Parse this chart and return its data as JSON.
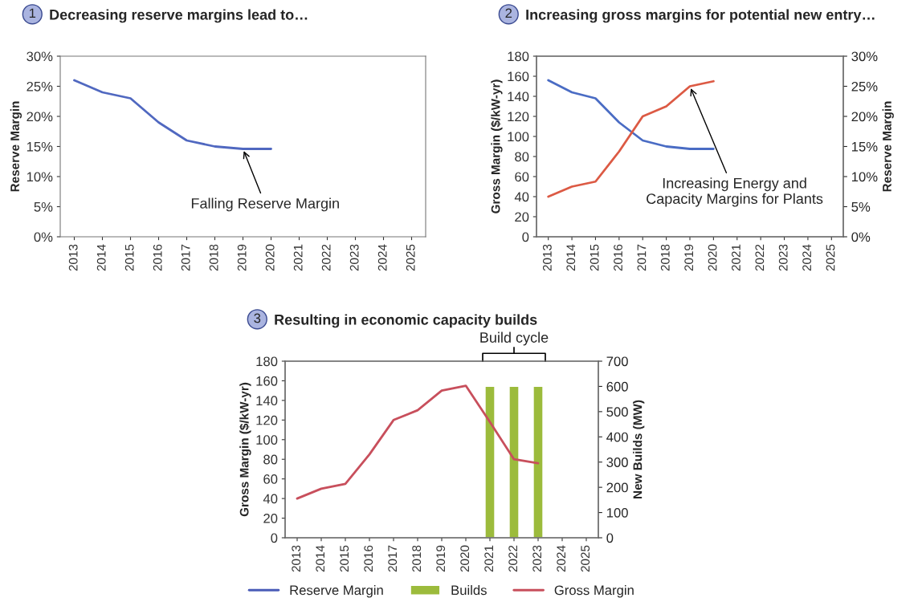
{
  "chart_data": [
    {
      "type": "line",
      "title": "Decreasing reserve margins lead to…",
      "ylabel": "Reserve Margin",
      "categories": [
        "2013",
        "2014",
        "2015",
        "2016",
        "2017",
        "2018",
        "2019",
        "2020",
        "2021",
        "2022",
        "2023",
        "2024",
        "2025"
      ],
      "series": [
        {
          "color": "#5068c0",
          "values": [
            26,
            24,
            23,
            19,
            16,
            15,
            14.6,
            14.6,
            null,
            null,
            null,
            null,
            null
          ]
        }
      ],
      "ylim": [
        0,
        30
      ],
      "yticks": [
        {
          "value": 0,
          "label": "0%"
        },
        {
          "value": 5,
          "label": "5%"
        },
        {
          "value": 10,
          "label": "10%"
        },
        {
          "value": 15,
          "label": "15%"
        },
        {
          "value": 20,
          "label": "20%"
        },
        {
          "value": 25,
          "label": "25%"
        },
        {
          "value": 30,
          "label": "30%"
        }
      ],
      "annotations": [
        "1",
        {
          "text": "Falling Reserve Margin",
          "x": "2019",
          "y": 14.6
        }
      ],
      "grid": false
    },
    {
      "type": "line",
      "title": "Increasing gross margins for potential new entry…",
      "ylabel": "Gross Margin ($/kW-yr)",
      "y2label": "Reserve Margin",
      "categories": [
        "2013",
        "2014",
        "2015",
        "2016",
        "2017",
        "2018",
        "2019",
        "2020",
        "2021",
        "2022",
        "2023",
        "2024",
        "2025"
      ],
      "series": [
        {
          "color": "#4a6cc4",
          "axis": "y2",
          "values": [
            26,
            24,
            23,
            19,
            16,
            15,
            14.6,
            14.6,
            null,
            null,
            null,
            null,
            null
          ]
        },
        {
          "color": "#dc5a44",
          "values": [
            40,
            50,
            55,
            85,
            120,
            130,
            150,
            155,
            null,
            null,
            null,
            null,
            null
          ]
        }
      ],
      "ylim": [
        0,
        180
      ],
      "yticks": [
        0,
        20,
        40,
        60,
        80,
        100,
        120,
        140,
        160,
        180
      ],
      "y2lim": [
        0,
        30
      ],
      "y2ticks": [
        {
          "value": 0,
          "label": "0%"
        },
        {
          "value": 5,
          "label": "5%"
        },
        {
          "value": 10,
          "label": "10%"
        },
        {
          "value": 15,
          "label": "15%"
        },
        {
          "value": 20,
          "label": "20%"
        },
        {
          "value": 25,
          "label": "25%"
        },
        {
          "value": 30,
          "label": "30%"
        }
      ],
      "annotations": [
        "2",
        {
          "text": "Increasing Energy and\nCapacity Margins for Plants",
          "x": "2019",
          "y": 150
        }
      ],
      "grid": false
    },
    {
      "type": "line",
      "title": "Resulting in economic capacity builds",
      "ylabel": "Gross Margin ($/kW-yr)",
      "y2label": "New Builds (MW)",
      "categories": [
        "2013",
        "2014",
        "2015",
        "2016",
        "2017",
        "2018",
        "2019",
        "2020",
        "2021",
        "2022",
        "2023",
        "2024",
        "2025"
      ],
      "series": [
        {
          "name": "Reserve Margin",
          "color": "#4a5cb8",
          "values": [
            null,
            null,
            null,
            null,
            null,
            null,
            null,
            null,
            null,
            null,
            null,
            null,
            null
          ]
        },
        {
          "name": "Builds",
          "type": "bar",
          "axis": "y2",
          "color": "#9cbb3c",
          "values": [
            null,
            null,
            null,
            null,
            null,
            null,
            null,
            null,
            600,
            600,
            600,
            null,
            null
          ]
        },
        {
          "name": "Gross Margin",
          "color": "#c84f5c",
          "values": [
            40,
            50,
            55,
            85,
            120,
            130,
            150,
            155,
            118,
            80,
            76,
            null,
            null
          ]
        }
      ],
      "ylim": [
        0,
        180
      ],
      "yticks": [
        0,
        20,
        40,
        60,
        80,
        100,
        120,
        140,
        160,
        180
      ],
      "y2lim": [
        0,
        700
      ],
      "y2ticks": [
        0,
        100,
        200,
        300,
        400,
        500,
        600,
        700
      ],
      "annotations": [
        "3",
        "Build cycle"
      ],
      "grid": false,
      "legend": "bottom"
    }
  ]
}
